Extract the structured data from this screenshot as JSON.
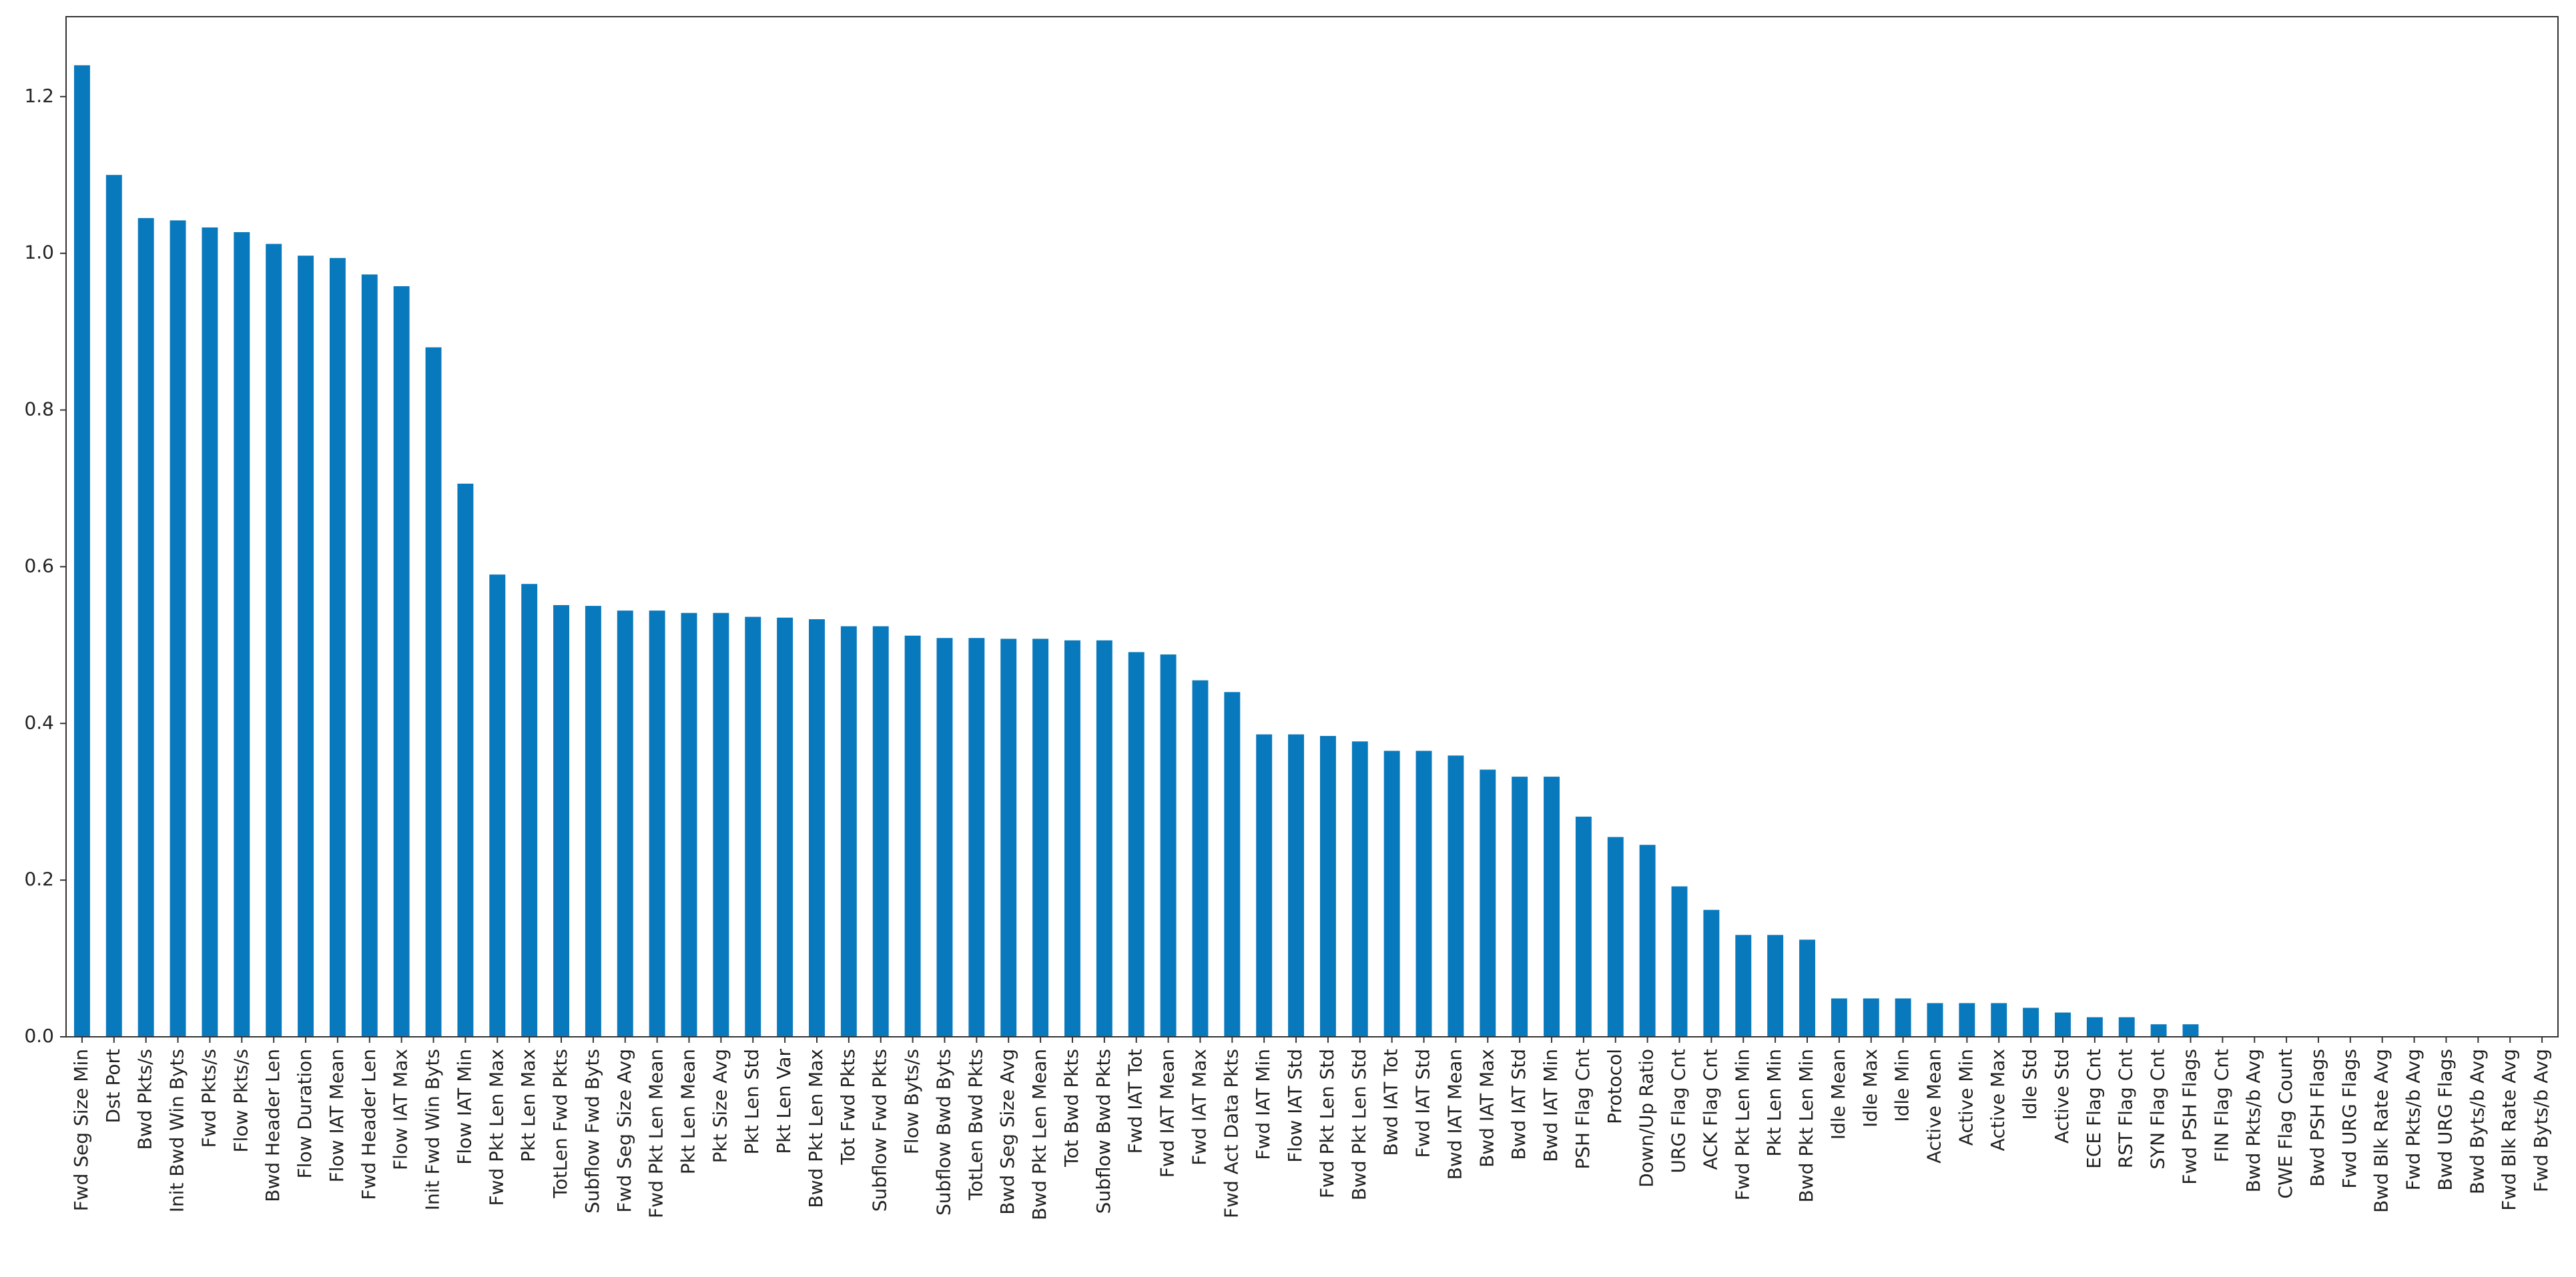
{
  "chart_data": {
    "type": "bar",
    "categories": [
      "Fwd Seg Size Min",
      "Dst Port",
      "Bwd Pkts/s",
      "Init Bwd Win Byts",
      "Fwd Pkts/s",
      "Flow Pkts/s",
      "Bwd Header Len",
      "Flow Duration",
      "Flow IAT Mean",
      "Fwd Header Len",
      "Flow IAT Max",
      "Init Fwd Win Byts",
      "Flow IAT Min",
      "Fwd Pkt Len Max",
      "Pkt Len Max",
      "TotLen Fwd Pkts",
      "Subflow Fwd Byts",
      "Fwd Seg Size Avg",
      "Fwd Pkt Len Mean",
      "Pkt Len Mean",
      "Pkt Size Avg",
      "Pkt Len Std",
      "Pkt Len Var",
      "Bwd Pkt Len Max",
      "Tot Fwd Pkts",
      "Subflow Fwd Pkts",
      "Flow Byts/s",
      "Subflow Bwd Byts",
      "TotLen Bwd Pkts",
      "Bwd Seg Size Avg",
      "Bwd Pkt Len Mean",
      "Tot Bwd Pkts",
      "Subflow Bwd Pkts",
      "Fwd IAT Tot",
      "Fwd IAT Mean",
      "Fwd IAT Max",
      "Fwd Act Data Pkts",
      "Fwd IAT Min",
      "Flow IAT Std",
      "Fwd Pkt Len Std",
      "Bwd Pkt Len Std",
      "Bwd IAT Tot",
      "Fwd IAT Std",
      "Bwd IAT Mean",
      "Bwd IAT Max",
      "Bwd IAT Std",
      "Bwd IAT Min",
      "PSH Flag Cnt",
      "Protocol",
      "Down/Up Ratio",
      "URG Flag Cnt",
      "ACK Flag Cnt",
      "Fwd Pkt Len Min",
      "Pkt Len Min",
      "Bwd Pkt Len Min",
      "Idle Mean",
      "Idle Max",
      "Idle Min",
      "Active Mean",
      "Active Min",
      "Active Max",
      "Idle Std",
      "Active Std",
      "ECE Flag Cnt",
      "RST Flag Cnt",
      "SYN Flag Cnt",
      "Fwd PSH Flags",
      "FIN Flag Cnt",
      "Bwd Pkts/b Avg",
      "CWE Flag Count",
      "Bwd PSH Flags",
      "Fwd URG Flags",
      "Bwd Blk Rate Avg",
      "Fwd Pkts/b Avg",
      "Bwd URG Flags",
      "Bwd Byts/b Avg",
      "Fwd Blk Rate Avg",
      "Fwd Byts/b Avg"
    ],
    "values": [
      1.24,
      1.1,
      1.045,
      1.042,
      1.033,
      1.027,
      1.012,
      0.997,
      0.994,
      0.973,
      0.958,
      0.88,
      0.706,
      0.59,
      0.578,
      0.551,
      0.55,
      0.544,
      0.544,
      0.541,
      0.541,
      0.536,
      0.535,
      0.533,
      0.524,
      0.524,
      0.512,
      0.509,
      0.509,
      0.508,
      0.508,
      0.506,
      0.506,
      0.491,
      0.488,
      0.455,
      0.44,
      0.386,
      0.386,
      0.384,
      0.377,
      0.365,
      0.365,
      0.359,
      0.341,
      0.332,
      0.332,
      0.281,
      0.255,
      0.245,
      0.192,
      0.162,
      0.13,
      0.13,
      0.124,
      0.049,
      0.049,
      0.049,
      0.043,
      0.043,
      0.043,
      0.037,
      0.031,
      0.025,
      0.025,
      0.016,
      0.016,
      0,
      0,
      0,
      0,
      0,
      0,
      0,
      0,
      0,
      0,
      0
    ],
    "color": "#0979bd",
    "ylim": [
      0,
      1.302
    ],
    "yticks": [
      {
        "value": 0,
        "label": "0.0"
      },
      0.2,
      0.4,
      0.6,
      0.8,
      {
        "value": 1,
        "label": "1.0"
      },
      1.2
    ]
  }
}
